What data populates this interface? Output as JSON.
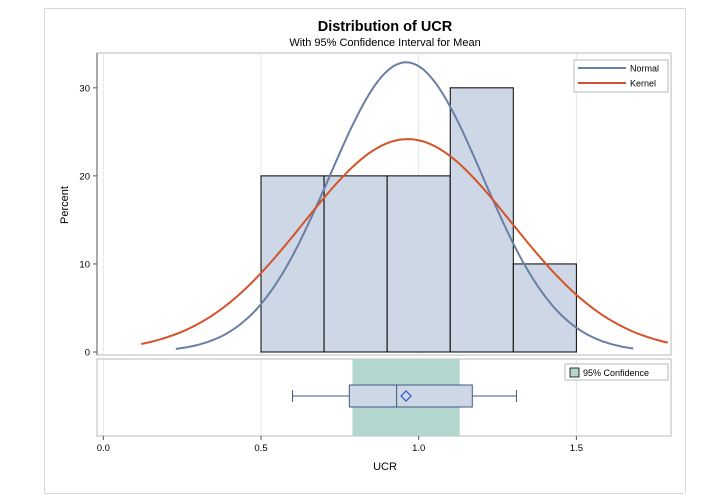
{
  "chart_data": {
    "type": "bar",
    "title": "Distribution of UCR",
    "subtitle": "With 95% Confidence Interval for Mean",
    "xlabel": "UCR",
    "ylabel": "Percent",
    "xlim": [
      -0.02,
      1.8
    ],
    "ylim": [
      0,
      33.5
    ],
    "x_ticks": [
      "0.0",
      "0.5",
      "1.0",
      "1.5"
    ],
    "x_tick_values": [
      0.0,
      0.5,
      1.0,
      1.5
    ],
    "y_ticks": [
      "0",
      "10",
      "20",
      "30"
    ],
    "y_tick_values": [
      0,
      10,
      20,
      30
    ],
    "bin_edges": [
      0.5,
      0.7,
      0.9,
      1.1,
      1.3,
      1.5
    ],
    "values": [
      20,
      20,
      20,
      30,
      10
    ],
    "bar_color": "#cdd7e6",
    "series": [
      {
        "name": "Normal",
        "color": "#6a7fa5",
        "mean": 0.96,
        "sd": 0.2425,
        "scale": 20,
        "x_range": [
          0.23,
          1.68
        ]
      },
      {
        "name": "Kernel",
        "color": "#d4532a",
        "mean": 0.965,
        "sd": 0.33,
        "scale": 20,
        "x_range": [
          0.12,
          1.79
        ]
      }
    ],
    "legend": {
      "position": "top-right",
      "entries": [
        "Normal",
        "Kernel"
      ]
    },
    "grid": {
      "x": true,
      "y": false
    },
    "boxplot": {
      "whisker_low": 0.6,
      "q1": 0.78,
      "median": 0.93,
      "mean": 0.96,
      "q3": 1.17,
      "whisker_high": 1.31,
      "ci_low": 0.79,
      "ci_high": 1.13,
      "ci_color": "#b3d6cf",
      "ci_legend": "95% Confidence"
    }
  }
}
